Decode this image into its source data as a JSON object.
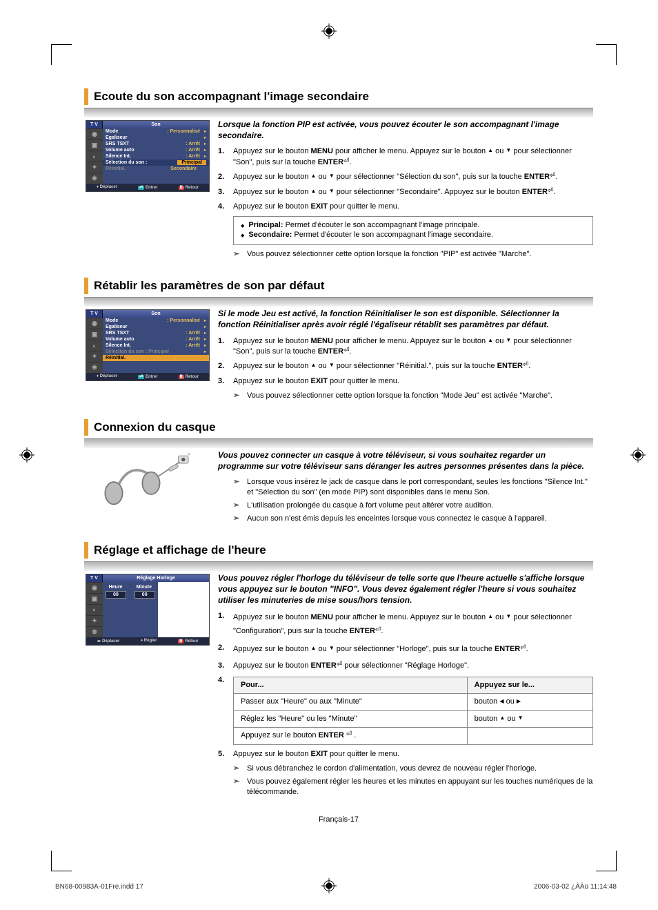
{
  "sections": {
    "s1": {
      "title": "Ecoute du son accompagnant l'image secondaire",
      "intro": "Lorsque la fonction PIP est activée, vous pouvez écouter le son accompagnant l'image secondaire.",
      "menu": {
        "tab": "T V",
        "title": "Son",
        "rows": [
          {
            "label": "Mode",
            "value": ": Personnalisé"
          },
          {
            "label": "Egaliseur",
            "value": ""
          },
          {
            "label": "SRS TSXT",
            "value": ": Arrêt"
          },
          {
            "label": "Volume auto",
            "value": ": Arrêt"
          },
          {
            "label": "Silence Int.",
            "value": ": Arrêt"
          },
          {
            "label": "Sélection du son :",
            "value": "Principal"
          },
          {
            "label": "Réinitial.",
            "value": "Secondaire"
          }
        ],
        "foot": [
          "Déplacer",
          "Entrer",
          "Retour"
        ]
      },
      "steps": [
        "Appuyez sur le bouton <b>MENU</b> pour afficher le menu. Appuyez sur le bouton <span class='arrow-up'>▲</span> ou <span class='arrow-down'>▼</span> pour sélectionner \"Son\", puis sur la touche <b>ENTER</b><span class='enter-icon'>⏎</span>.",
        "Appuyez sur le bouton <span class='arrow-up'>▲</span> ou <span class='arrow-down'>▼</span> pour sélectionner \"Sélection du son\", puis sur la touche <b>ENTER</b><span class='enter-icon'>⏎</span>.",
        "Appuyez sur le bouton <span class='arrow-up'>▲</span> ou <span class='arrow-down'>▼</span> pour sélectionner \"Secondaire\". Appuyez sur le bouton <b>ENTER</b><span class='enter-icon'>⏎</span>.",
        "Appuyez sur le bouton <b>EXIT</b> pour quitter le menu."
      ],
      "bullets": [
        "<b>Principal:</b> Permet d'écouter le son accompagnant l'image principale.",
        "<b>Secondaire:</b> Permet d'écouter le son accompagnant l'image secondaire."
      ],
      "notes": [
        "Vous pouvez sélectionner cette option lorsque la fonction \"PIP\" est activée \"Marche\"."
      ]
    },
    "s2": {
      "title": "Rétablir les paramètres de son par défaut",
      "intro": "Si le mode Jeu est activé, la fonction Réinitialiser le son est disponible. Sélectionner la fonction Réinitialiser après avoir réglé l'égaliseur rétablit ses paramètres par défaut.",
      "menu": {
        "tab": "T V",
        "title": "Son",
        "rows": [
          {
            "label": "Mode",
            "value": ": Personnalisé"
          },
          {
            "label": "Egaliseur",
            "value": ""
          },
          {
            "label": "SRS TSXT",
            "value": ": Arrêt"
          },
          {
            "label": "Volume auto",
            "value": ": Arrêt"
          },
          {
            "label": "Silence Int.",
            "value": ": Arrêt"
          },
          {
            "label": "Sélection du son : Principal",
            "value": ""
          },
          {
            "label": "Réinitial.",
            "value": ""
          }
        ],
        "foot": [
          "Déplacer",
          "Entrer",
          "Retour"
        ]
      },
      "steps": [
        "Appuyez sur le bouton <b>MENU</b> pour afficher le menu. Appuyez sur le bouton <span class='arrow-up'>▲</span> ou <span class='arrow-down'>▼</span> pour sélectionner \"Son\", puis sur la touche <b>ENTER</b><span class='enter-icon'>⏎</span>.",
        "Appuyez sur le bouton <span class='arrow-up'>▲</span> ou <span class='arrow-down'>▼</span> pour sélectionner \"Réinitial.\", puis sur la touche <b>ENTER</b><span class='enter-icon'>⏎</span>.",
        "Appuyez sur le bouton <b>EXIT</b> pour quitter le menu."
      ],
      "notes": [
        "Vous pouvez sélectionner cette option lorsque la fonction \"Mode Jeu\" est activée \"Marche\"."
      ]
    },
    "s3": {
      "title": "Connexion du casque",
      "intro": "Vous pouvez connecter un casque à votre téléviseur, si vous souhaitez regarder un programme sur votre téléviseur sans déranger les autres personnes présentes dans la pièce.",
      "notes": [
        "Lorsque vous insérez le jack de casque dans le port  correspondant, seules les fonctions \"Silence Int.\" et \"Sélection du son\" (en mode PIP) sont disponibles dans le menu Son.",
        "L'utilisation prolongée du casque à fort volume peut altérer votre audition.",
        "Aucun son n'est émis depuis les enceintes lorsque vous connectez le casque à l'appareil."
      ]
    },
    "s4": {
      "title": "Réglage et affichage de l'heure",
      "intro": "Vous pouvez régler l'horloge du téléviseur de telle sorte que l'heure actuelle s'affiche lorsque vous appuyez sur le bouton \"INFO\". Vous devez également régler l'heure si vous souhaitez utiliser les minuteries de mise sous/hors tension.",
      "menu": {
        "tab": "T V",
        "title": "Réglage Horloge",
        "heure": "Heure",
        "minute": "Minute",
        "h": "00",
        "m": "00",
        "foot": [
          "Déplacer",
          "Régler",
          "Retour"
        ]
      },
      "steps_a": [
        "Appuyez sur le bouton <b>MENU</b> pour afficher le menu. Appuyez sur le bouton <span class='arrow-up'>▲</span> ou <span class='arrow-down'>▼</span> pour sélectionner \"Configuration\", puis sur la touche <b>ENTER</b><span class='enter-icon'>⏎</span>.",
        "Appuyez sur le bouton <span class='arrow-up'>▲</span> ou <span class='arrow-down'>▼</span> pour sélectionner \"Horloge\", puis sur la touche <b>ENTER</b><span class='enter-icon'>⏎</span>.",
        "Appuyez sur le bouton <b>ENTER</b><span class='enter-icon'>⏎</span> pour sélectionner \"Réglage Horloge\"."
      ],
      "table": {
        "head": [
          "Pour...",
          "Appuyez sur le..."
        ],
        "rows": [
          [
            "Passer aux \"Heure\" ou aux \"Minute\"",
            "bouton  <span class='arrow-left'>◀</span>  ou  <span class='arrow-right'>▶</span>"
          ],
          [
            "Réglez les \"Heure\" ou les \"Minute\"",
            "bouton  <span class='arrow-up'>▲</span>  ou  <span class='arrow-down'>▼</span>"
          ],
          [
            "Appuyez sur le bouton <b>ENTER</b> <span class='enter-icon'>⏎</span> .",
            ""
          ]
        ]
      },
      "step5": "Appuyez sur le bouton <b>EXIT</b> pour quitter le menu.",
      "notes": [
        "Si vous débranchez le cordon d'alimentation, vous devrez de nouveau régler l'horloge.",
        "Vous pouvez également régler les heures et les minutes en appuyant sur les touches numériques de la télécommande."
      ]
    }
  },
  "page_number": "Français-17",
  "footer_left": "BN68-00983A-01Fre.indd   17",
  "footer_right": "2006-03-02   ¿ÀÀü 11:14:48"
}
